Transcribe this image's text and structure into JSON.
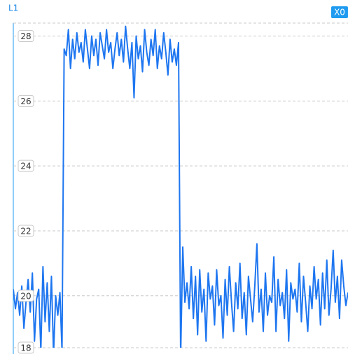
{
  "chart_data": {
    "type": "line",
    "y_label": "L1",
    "x_label": "X0",
    "color": "#1e76f0",
    "ylim": [
      18.4,
      28.4
    ],
    "yticks": [
      18,
      20,
      22,
      24,
      26,
      28
    ],
    "grid": true,
    "values": [
      20.2,
      19.6,
      20.1,
      19.4,
      20.3,
      19.0,
      19.8,
      20.5,
      19.5,
      20.7,
      18.6,
      19.9,
      20.2,
      18.3,
      20.9,
      19.2,
      20.4,
      18.9,
      20.6,
      18.2,
      20.0,
      19.4,
      20.1,
      18.3,
      27.6,
      27.4,
      28.2,
      27.0,
      27.9,
      27.3,
      28.1,
      27.5,
      27.8,
      27.2,
      28.2,
      27.6,
      27.0,
      28.0,
      27.4,
      27.9,
      27.1,
      28.1,
      27.7,
      27.3,
      28.2,
      27.5,
      27.8,
      27.0,
      27.6,
      28.1,
      27.4,
      27.9,
      27.2,
      28.3,
      27.6,
      27.0,
      27.8,
      26.1,
      28.0,
      27.3,
      27.7,
      26.9,
      28.2,
      27.5,
      27.1,
      27.9,
      27.4,
      28.2,
      27.0,
      27.7,
      27.3,
      28.1,
      27.5,
      26.8,
      27.9,
      27.2,
      27.6,
      27.1,
      27.8,
      18.1,
      21.5,
      19.8,
      20.4,
      19.6,
      20.9,
      19.3,
      20.6,
      18.8,
      20.8,
      19.5,
      20.2,
      18.6,
      20.7,
      19.9,
      20.3,
      19.1,
      20.8,
      19.7,
      20.0,
      18.7,
      20.5,
      19.4,
      20.9,
      19.8,
      18.9,
      20.4,
      19.6,
      21.0,
      19.3,
      20.1,
      18.8,
      20.6,
      19.9,
      19.2,
      20.3,
      21.6,
      19.5,
      20.2,
      18.9,
      20.7,
      19.4,
      20.0,
      19.8,
      21.2,
      18.9,
      20.5,
      19.7,
      20.1,
      19.3,
      20.8,
      18.6,
      20.4,
      19.9,
      20.2,
      19.5,
      21.0,
      19.2,
      20.6,
      19.8,
      18.9,
      20.3,
      19.6,
      20.9,
      19.9,
      20.5,
      19.1,
      20.7,
      19.6,
      21.1,
      19.4,
      20.2,
      21.4,
      19.8,
      20.6,
      19.3,
      21.1,
      20.3,
      19.7,
      20.1
    ]
  }
}
